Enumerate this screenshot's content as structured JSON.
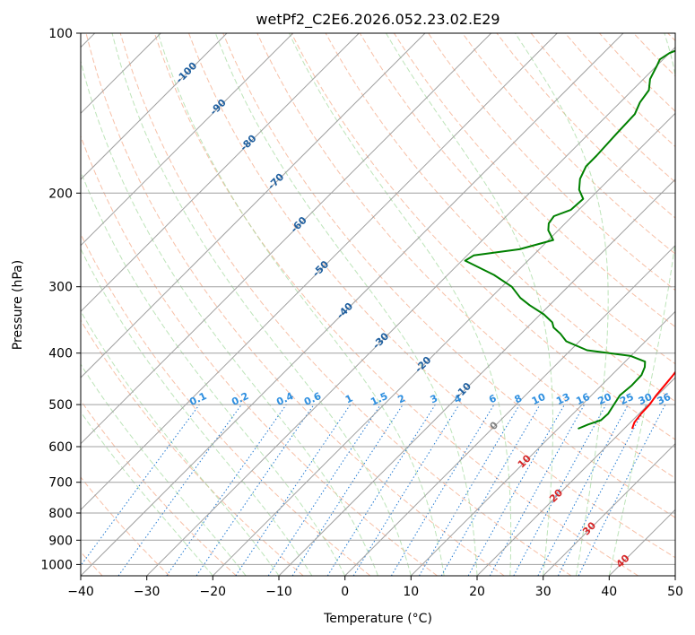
{
  "chart_data": {
    "type": "line",
    "diagram": "skew-T log-P",
    "title": "wetPf2_C2E6.2026.052.23.02.E29",
    "xlabel": "Temperature (°C)",
    "ylabel": "Pressure (hPa)",
    "xlim": [
      -40,
      50
    ],
    "ylim": [
      1050,
      100
    ],
    "x_ticks": [
      -40,
      -30,
      -20,
      -10,
      0,
      10,
      20,
      30,
      40,
      50
    ],
    "x_tick_labels": [
      "−40",
      "−30",
      "−20",
      "−10",
      "0",
      "10",
      "20",
      "30",
      "40",
      "50"
    ],
    "y_ticks": [
      100,
      200,
      300,
      400,
      500,
      600,
      700,
      800,
      900,
      1000
    ],
    "y_tick_labels": [
      "100",
      "200",
      "300",
      "400",
      "500",
      "600",
      "700",
      "800",
      "900",
      "1000"
    ],
    "colors": {
      "temperature": "#ff0000",
      "dewpoint": "#008000",
      "isotherm": "#a0a0a0",
      "isobar": "#a0a0a0",
      "dry_adiabat": "#f4a582",
      "moist_adiabat": "#a1d99b",
      "mixing_ratio": "#1f78d1",
      "isotherm_label_cold": "#1f5f9f",
      "isotherm_label_warm": "#d62728",
      "zero_label": "#808080",
      "mixing_label": "#2e8fe0"
    },
    "isotherm_labels": [
      {
        "value": -100,
        "text": "-100",
        "p": 118
      },
      {
        "value": -90,
        "text": "-90",
        "p": 137
      },
      {
        "value": -80,
        "text": "-80",
        "p": 160
      },
      {
        "value": -70,
        "text": "-70",
        "p": 189
      },
      {
        "value": -60,
        "text": "-60",
        "p": 228
      },
      {
        "value": -50,
        "text": "-50",
        "p": 276
      },
      {
        "value": -40,
        "text": "-40",
        "p": 331
      },
      {
        "value": -30,
        "text": "-30",
        "p": 377
      },
      {
        "value": -20,
        "text": "-20",
        "p": 418
      },
      {
        "value": -10,
        "text": "-10",
        "p": 468
      },
      {
        "value": 0,
        "text": "0",
        "p": 545
      },
      {
        "value": 10,
        "text": "10",
        "p": 636
      },
      {
        "value": 20,
        "text": "20",
        "p": 738
      },
      {
        "value": 30,
        "text": "30",
        "p": 851
      },
      {
        "value": 40,
        "text": "40",
        "p": 980
      }
    ],
    "mixing_ratio_labels": [
      "0.1",
      "0.2",
      "0.4",
      "0.6",
      "1",
      "1.5",
      "2",
      "3",
      "4",
      "6",
      "8",
      "10",
      "13",
      "16",
      "20",
      "25",
      "30",
      "36"
    ],
    "mixing_ratio_values": [
      0.1,
      0.2,
      0.4,
      0.6,
      1,
      1.5,
      2,
      3,
      4,
      6,
      8,
      10,
      13,
      16,
      20,
      25,
      30,
      36
    ],
    "series": [
      {
        "name": "Temperature",
        "color": "#ff0000",
        "points": [
          [
            21.2,
            555
          ],
          [
            20.6,
            540
          ],
          [
            20.3,
            520
          ],
          [
            20.2,
            500
          ],
          [
            19.8,
            480
          ],
          [
            19.5,
            455
          ],
          [
            19.3,
            440
          ],
          [
            19.0,
            425
          ],
          [
            19.5,
            410
          ],
          [
            19.6,
            395
          ],
          [
            19.0,
            375
          ],
          [
            17.8,
            355
          ],
          [
            16.3,
            335
          ],
          [
            14.6,
            315
          ],
          [
            13.3,
            295
          ],
          [
            11.1,
            270
          ],
          [
            8.6,
            250
          ],
          [
            5.5,
            228
          ],
          [
            2.5,
            208
          ],
          [
            -1.0,
            185
          ],
          [
            -4.5,
            165
          ],
          [
            -7.0,
            150
          ],
          [
            -9.8,
            137
          ],
          [
            -13.0,
            126
          ],
          [
            -16.0,
            118
          ],
          [
            -18.5,
            111
          ],
          [
            -19.6,
            108
          ],
          [
            -20.8,
            106
          ],
          [
            -23.0,
            103
          ],
          [
            -26.0,
            100
          ]
        ]
      },
      {
        "name": "Dewpoint",
        "color": "#008000",
        "points": [
          [
            13.0,
            555
          ],
          [
            13.9,
            545
          ],
          [
            15.2,
            535
          ],
          [
            15.3,
            520
          ],
          [
            14.8,
            500
          ],
          [
            14.3,
            480
          ],
          [
            14.6,
            460
          ],
          [
            14.5,
            440
          ],
          [
            13.8,
            425
          ],
          [
            13.0,
            415
          ],
          [
            10.0,
            405
          ],
          [
            2.5,
            395
          ],
          [
            -2.0,
            380
          ],
          [
            -4.0,
            368
          ],
          [
            -6.0,
            358
          ],
          [
            -7.0,
            350
          ],
          [
            -9.5,
            338
          ],
          [
            -13.0,
            325
          ],
          [
            -15.5,
            315
          ],
          [
            -18.5,
            300
          ],
          [
            -23.0,
            285
          ],
          [
            -29.5,
            268
          ],
          [
            -29.0,
            262
          ],
          [
            -23.0,
            255
          ],
          [
            -19.3,
            245
          ],
          [
            -21.5,
            235
          ],
          [
            -22.5,
            228
          ],
          [
            -22.8,
            221
          ],
          [
            -21.2,
            215
          ],
          [
            -21.0,
            205
          ],
          [
            -23.0,
            197
          ],
          [
            -24.5,
            188
          ],
          [
            -25.5,
            178
          ],
          [
            -25.5,
            170
          ],
          [
            -25.8,
            155
          ],
          [
            -26.0,
            142
          ],
          [
            -27.0,
            135
          ],
          [
            -27.5,
            128
          ],
          [
            -29.0,
            122
          ],
          [
            -30.0,
            115
          ],
          [
            -30.5,
            112
          ],
          [
            -30.0,
            109
          ],
          [
            -29.0,
            107
          ],
          [
            -28.0,
            105
          ],
          [
            -27.0,
            104
          ],
          [
            -26.2,
            102
          ],
          [
            -26.0,
            100
          ]
        ]
      }
    ]
  }
}
